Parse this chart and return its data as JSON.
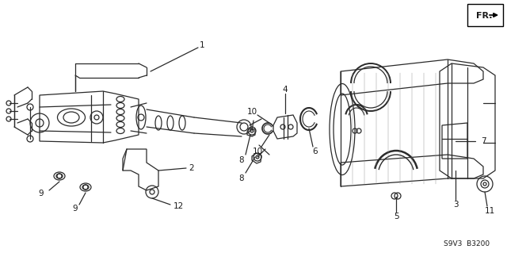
{
  "bg_color": "#ffffff",
  "line_color": "#2a2a2a",
  "label_color": "#1a1a1a",
  "fig_width": 6.4,
  "fig_height": 3.19,
  "dpi": 100,
  "part_code": "S9V3  B3200",
  "fr_label": "FR."
}
